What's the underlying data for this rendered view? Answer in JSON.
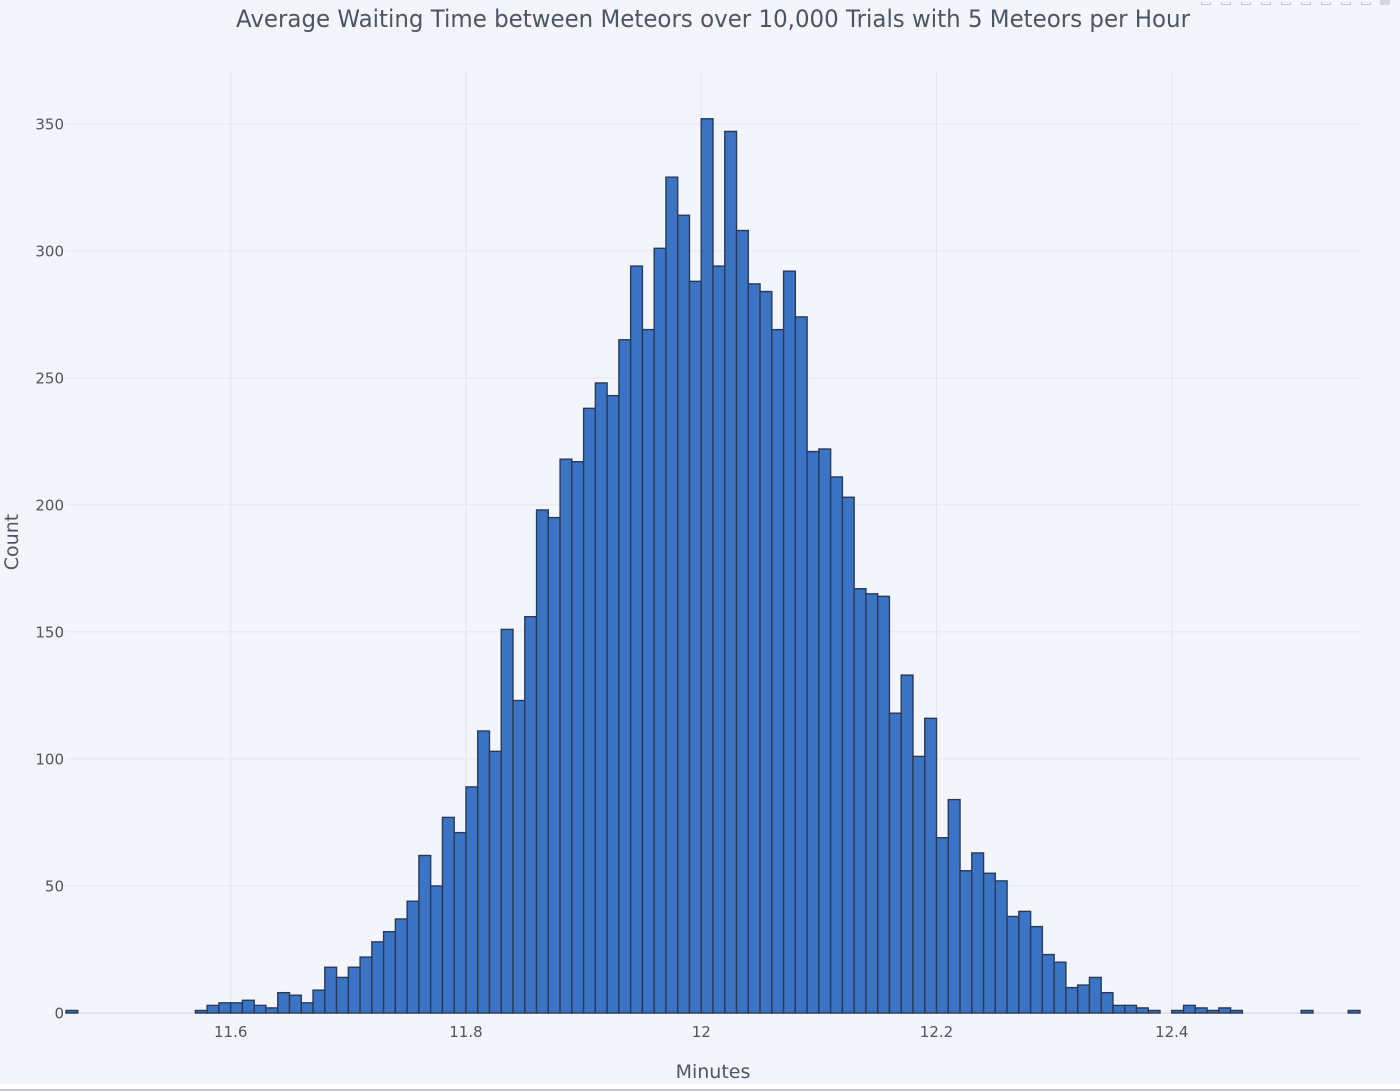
{
  "modebar": {
    "buttons": [
      {
        "name": "download-png-icon",
        "label": "Download plot as a png"
      },
      {
        "name": "zoom-icon",
        "label": "Zoom"
      },
      {
        "name": "pan-icon",
        "label": "Pan"
      },
      {
        "name": "box-select-icon",
        "label": "Box Select"
      },
      {
        "name": "lasso-select-icon",
        "label": "Lasso Select"
      },
      {
        "name": "zoom-in-icon",
        "label": "Zoom in"
      },
      {
        "name": "zoom-out-icon",
        "label": "Zoom out"
      },
      {
        "name": "autoscale-icon",
        "label": "Autoscale"
      },
      {
        "name": "reset-axes-icon",
        "label": "Reset axes"
      }
    ]
  },
  "chart_data": {
    "type": "bar",
    "subtype": "histogram",
    "title": "Average Waiting Time between Meteors over 10,000 Trials with 5 Meteors per Hour",
    "xlabel": "Minutes",
    "ylabel": "Count",
    "bin_width": 0.01,
    "x": [
      11.46,
      11.47,
      11.48,
      11.49,
      11.5,
      11.51,
      11.52,
      11.53,
      11.54,
      11.55,
      11.56,
      11.57,
      11.58,
      11.59,
      11.6,
      11.61,
      11.62,
      11.63,
      11.64,
      11.65,
      11.66,
      11.67,
      11.68,
      11.69,
      11.7,
      11.71,
      11.72,
      11.73,
      11.74,
      11.75,
      11.76,
      11.77,
      11.78,
      11.79,
      11.8,
      11.81,
      11.82,
      11.83,
      11.84,
      11.85,
      11.86,
      11.87,
      11.88,
      11.89,
      11.9,
      11.91,
      11.92,
      11.93,
      11.94,
      11.95,
      11.96,
      11.97,
      11.98,
      11.99,
      12.0,
      12.01,
      12.02,
      12.03,
      12.04,
      12.05,
      12.06,
      12.07,
      12.08,
      12.09,
      12.1,
      12.11,
      12.12,
      12.13,
      12.14,
      12.15,
      12.16,
      12.17,
      12.18,
      12.19,
      12.2,
      12.21,
      12.22,
      12.23,
      12.24,
      12.25,
      12.26,
      12.27,
      12.28,
      12.29,
      12.3,
      12.31,
      12.32,
      12.33,
      12.34,
      12.35,
      12.36,
      12.37,
      12.38,
      12.39,
      12.4,
      12.41,
      12.42,
      12.43,
      12.44,
      12.45,
      12.46,
      12.47,
      12.48,
      12.49,
      12.5,
      12.51,
      12.52,
      12.53,
      12.54,
      12.55
    ],
    "values": [
      1,
      0,
      0,
      0,
      0,
      0,
      0,
      0,
      0,
      0,
      0,
      1,
      3,
      4,
      4,
      5,
      3,
      2,
      8,
      7,
      4,
      9,
      18,
      14,
      18,
      22,
      28,
      32,
      37,
      44,
      62,
      50,
      77,
      71,
      89,
      111,
      103,
      151,
      123,
      156,
      198,
      195,
      218,
      217,
      238,
      248,
      243,
      265,
      294,
      269,
      301,
      329,
      314,
      288,
      352,
      294,
      347,
      308,
      287,
      284,
      269,
      292,
      274,
      221,
      222,
      211,
      203,
      167,
      165,
      164,
      118,
      133,
      101,
      116,
      69,
      84,
      56,
      63,
      55,
      52,
      38,
      40,
      34,
      23,
      20,
      10,
      11,
      14,
      8,
      3,
      3,
      2,
      1,
      0,
      1,
      3,
      2,
      1,
      2,
      1,
      0,
      0,
      0,
      0,
      0,
      1,
      0,
      0,
      0,
      1
    ],
    "xlim": [
      11.46,
      12.56
    ],
    "ylim": [
      0,
      370.4
    ],
    "xticks": [
      11.6,
      11.8,
      12.0,
      12.2,
      12.4
    ],
    "xtick_labels": [
      "11.6",
      "11.8",
      "12",
      "12.2",
      "12.4"
    ],
    "yticks": [
      0,
      50,
      100,
      150,
      200,
      250,
      300,
      350
    ],
    "ytick_labels": [
      "0",
      "50",
      "100",
      "150",
      "200",
      "250",
      "300",
      "350"
    ],
    "grid": true,
    "legend": false,
    "colors": {
      "bar_fill": "#3b74c5",
      "bar_stroke": "#2a3a55",
      "background": "#f4f5fa",
      "grid": "#e4e6ec",
      "text": "#4a5566"
    }
  }
}
